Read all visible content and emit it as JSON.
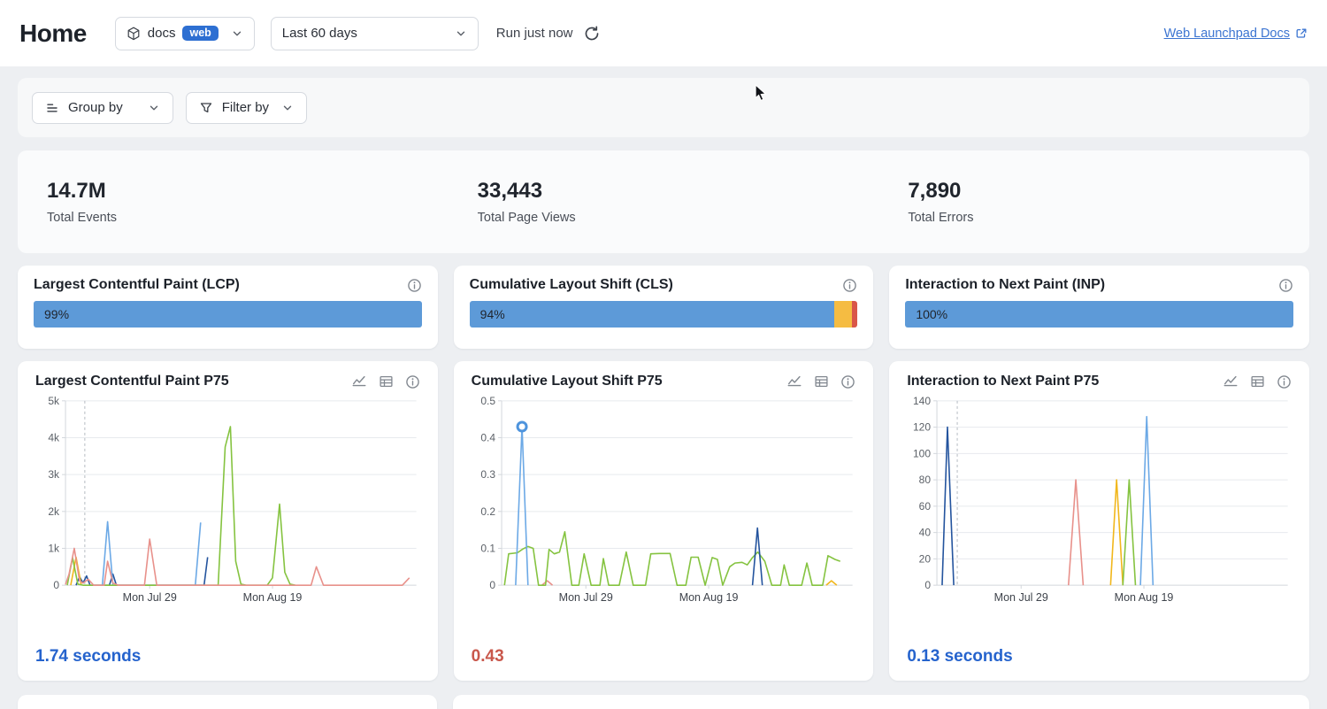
{
  "header": {
    "title": "Home",
    "project_selector": {
      "name": "docs",
      "badge": "web"
    },
    "date_range": "Last 60 days",
    "run_status": "Run just now",
    "docs_link": "Web Launchpad Docs"
  },
  "filters": {
    "group_by_label": "Group by",
    "filter_by_label": "Filter by"
  },
  "stats": [
    {
      "value": "14.7M",
      "label": "Total Events"
    },
    {
      "value": "33,443",
      "label": "Total Page Views"
    },
    {
      "value": "7,890",
      "label": "Total Errors"
    }
  ],
  "vitals": [
    {
      "title": "Largest Contentful Paint (LCP)",
      "score_label": "99%",
      "segments": [
        {
          "name": "good",
          "color": "#5d9ad8",
          "pct": 100
        }
      ]
    },
    {
      "title": "Cumulative Layout Shift (CLS)",
      "score_label": "94%",
      "segments": [
        {
          "name": "good",
          "color": "#5d9ad8",
          "pct": 94
        },
        {
          "name": "needs-improvement",
          "color": "#f5bc42",
          "pct": 4.6
        },
        {
          "name": "poor",
          "color": "#d95649",
          "pct": 1.4
        }
      ]
    },
    {
      "title": "Interaction to Next Paint (INP)",
      "score_label": "100%",
      "segments": [
        {
          "name": "good",
          "color": "#5d9ad8",
          "pct": 100
        }
      ]
    }
  ],
  "icons": {
    "project-icon": "cube",
    "chevron-down-icon": "v-chevron",
    "refresh-icon": "circular-arrow",
    "external-link-icon": "box-arrow",
    "group-by-icon": "stacked-lines",
    "filter-by-icon": "funnel",
    "line-chart-icon": "trend-polyline",
    "table-icon": "grid-table",
    "info-icon": "circled-i"
  },
  "colors": {
    "accent_blue": "#2d6fd2",
    "score_good": "#5d9ad8",
    "score_meh": "#f5bc42",
    "score_poor": "#d95649",
    "value_blue": "#2563cd",
    "value_red": "#c9584c"
  },
  "chart_data": [
    {
      "type": "line",
      "title": "Largest Contentful Paint P75",
      "value": "1.74 seconds",
      "value_color": "#2563cd",
      "ylim": [
        0,
        5000
      ],
      "yticks": [
        [
          0,
          "0"
        ],
        [
          1000,
          "1k"
        ],
        [
          2000,
          "2k"
        ],
        [
          3000,
          "3k"
        ],
        [
          4000,
          "4k"
        ],
        [
          5000,
          "5k"
        ]
      ],
      "xticks": [
        [
          24,
          "Mon Jul 29"
        ],
        [
          59,
          "Mon Aug 19"
        ]
      ],
      "markline_x": 5.5,
      "grid": true,
      "legend": "none",
      "series": [
        {
          "name": "navy",
          "color": "#24549e",
          "points": [
            [
              3,
              0
            ],
            [
              4,
              230
            ],
            [
              5,
              60
            ],
            [
              6,
              250
            ],
            [
              7,
              0
            ],
            [
              12.5,
              0
            ],
            [
              13.5,
              300
            ],
            [
              14.5,
              0
            ],
            [
              39.5,
              0
            ],
            [
              40.5,
              760
            ]
          ]
        },
        {
          "name": "orange",
          "color": "#f1b71c",
          "points": [
            [
              1.5,
              0
            ],
            [
              3,
              760
            ],
            [
              4.5,
              0
            ]
          ]
        },
        {
          "name": "lightblue",
          "color": "#6ca9e6",
          "points": [
            [
              10.5,
              0
            ],
            [
              12,
              1720
            ],
            [
              13.5,
              0
            ]
          ]
        },
        {
          "name": "lightblue-2",
          "color": "#6ca9e6",
          "points": [
            [
              37,
              0
            ],
            [
              38.5,
              1700
            ]
          ]
        },
        {
          "name": "green",
          "color": "#85c340",
          "points": [
            [
              0.5,
              0
            ],
            [
              2,
              750
            ],
            [
              3.5,
              30
            ],
            [
              5,
              0
            ],
            [
              43.5,
              0
            ],
            [
              45.5,
              3750
            ],
            [
              47,
              4300
            ],
            [
              48.5,
              650
            ],
            [
              50,
              30
            ],
            [
              51.5,
              0
            ],
            [
              57.5,
              0
            ],
            [
              59,
              200
            ],
            [
              61,
              2200
            ],
            [
              62.5,
              350
            ],
            [
              64,
              30
            ],
            [
              65.5,
              0
            ]
          ]
        },
        {
          "name": "salmon",
          "color": "#e8918b",
          "points": [
            [
              0,
              20
            ],
            [
              1,
              300
            ],
            [
              2.5,
              1000
            ],
            [
              4,
              120
            ],
            [
              5,
              60
            ],
            [
              6.5,
              160
            ],
            [
              8,
              0
            ],
            [
              11,
              0
            ],
            [
              12,
              650
            ],
            [
              13.5,
              60
            ],
            [
              15,
              0
            ],
            [
              22.5,
              0
            ],
            [
              24,
              1250
            ],
            [
              26,
              0
            ],
            [
              70,
              0
            ],
            [
              71.5,
              500
            ],
            [
              73.5,
              0
            ],
            [
              96,
              0
            ],
            [
              98,
              200
            ]
          ]
        }
      ]
    },
    {
      "type": "line",
      "title": "Cumulative Layout Shift P75",
      "value": "0.43",
      "value_color": "#c9584c",
      "ylim": [
        0,
        0.5
      ],
      "yticks": [
        [
          0,
          "0"
        ],
        [
          0.1,
          "0.1"
        ],
        [
          0.2,
          "0.2"
        ],
        [
          0.3,
          "0.3"
        ],
        [
          0.4,
          "0.4"
        ],
        [
          0.5,
          "0.5"
        ]
      ],
      "xticks": [
        [
          24,
          "Mon Jul 29"
        ],
        [
          59,
          "Mon Aug 19"
        ]
      ],
      "markline_x": null,
      "grid": true,
      "legend": "none",
      "marker": {
        "x": 5.8,
        "y": 0.43,
        "color": "#4e94dd"
      },
      "series": [
        {
          "name": "salmon",
          "color": "#e8918b",
          "points": [
            [
              11.5,
              0
            ],
            [
              13,
              0.012
            ],
            [
              14.5,
              0
            ]
          ]
        },
        {
          "name": "orange",
          "color": "#f1b71c",
          "points": [
            [
              92.5,
              0
            ],
            [
              94,
              0.012
            ],
            [
              95.5,
              0
            ]
          ]
        },
        {
          "name": "green",
          "color": "#85c340",
          "points": [
            [
              0.8,
              0
            ],
            [
              2,
              0.085
            ],
            [
              4.5,
              0.088
            ],
            [
              6,
              0.098
            ],
            [
              7.5,
              0.105
            ],
            [
              9,
              0.1
            ],
            [
              10.5,
              0
            ],
            [
              12.5,
              0
            ],
            [
              13.5,
              0.097
            ],
            [
              15,
              0.085
            ],
            [
              16.5,
              0.09
            ],
            [
              18,
              0.145
            ],
            [
              20,
              0
            ],
            [
              22,
              0
            ],
            [
              23.5,
              0.085
            ],
            [
              25.5,
              0
            ],
            [
              28,
              0
            ],
            [
              29,
              0.072
            ],
            [
              30.5,
              0
            ],
            [
              33.5,
              0
            ],
            [
              35.5,
              0.09
            ],
            [
              37.5,
              0
            ],
            [
              41,
              0
            ],
            [
              42.5,
              0.085
            ],
            [
              45,
              0.086
            ],
            [
              48,
              0.086
            ],
            [
              50,
              0
            ],
            [
              52.5,
              0
            ],
            [
              54,
              0.076
            ],
            [
              56,
              0.076
            ],
            [
              58,
              0
            ],
            [
              60,
              0.075
            ],
            [
              61.5,
              0.07
            ],
            [
              63,
              0
            ],
            [
              65,
              0.05
            ],
            [
              66.5,
              0.06
            ],
            [
              68.5,
              0.062
            ],
            [
              70,
              0.055
            ],
            [
              71.5,
              0.075
            ],
            [
              73,
              0.09
            ],
            [
              75,
              0.065
            ],
            [
              77,
              0
            ],
            [
              79.5,
              0
            ],
            [
              80.5,
              0.055
            ],
            [
              82,
              0
            ],
            [
              85.5,
              0
            ],
            [
              87,
              0.06
            ],
            [
              88.5,
              0
            ],
            [
              91.5,
              0
            ],
            [
              93,
              0.08
            ],
            [
              95,
              0.07
            ],
            [
              96.5,
              0.065
            ]
          ]
        },
        {
          "name": "navy",
          "color": "#24549e",
          "points": [
            [
              71.5,
              0
            ],
            [
              72.9,
              0.155
            ],
            [
              74.3,
              0
            ]
          ]
        },
        {
          "name": "lightblue",
          "color": "#6ca9e6",
          "points": [
            [
              4,
              0
            ],
            [
              5.8,
              0.43
            ],
            [
              7.5,
              0
            ]
          ]
        }
      ]
    },
    {
      "type": "line",
      "title": "Interaction to Next Paint P75",
      "value": "0.13 seconds",
      "value_color": "#2563cd",
      "ylim": [
        0,
        140
      ],
      "yticks": [
        [
          0,
          "0"
        ],
        [
          20,
          "20"
        ],
        [
          40,
          "40"
        ],
        [
          60,
          "60"
        ],
        [
          80,
          "80"
        ],
        [
          100,
          "100"
        ],
        [
          120,
          "120"
        ],
        [
          140,
          "140"
        ]
      ],
      "xticks": [
        [
          24,
          "Mon Jul 29"
        ],
        [
          59,
          "Mon Aug 19"
        ]
      ],
      "markline_x": 5.8,
      "grid": true,
      "legend": "none",
      "series": [
        {
          "name": "navy",
          "color": "#24549e",
          "points": [
            [
              1.5,
              0
            ],
            [
              3,
              120
            ],
            [
              4.8,
              0
            ]
          ]
        },
        {
          "name": "salmon",
          "color": "#e8918b",
          "points": [
            [
              37.5,
              0
            ],
            [
              39.6,
              80
            ],
            [
              41.7,
              0
            ]
          ]
        },
        {
          "name": "orange",
          "color": "#f1b71c",
          "points": [
            [
              49.5,
              0
            ],
            [
              51.2,
              80
            ],
            [
              53,
              0
            ]
          ]
        },
        {
          "name": "green",
          "color": "#85c340",
          "points": [
            [
              53,
              0
            ],
            [
              54.8,
              80
            ],
            [
              56.6,
              0
            ]
          ]
        },
        {
          "name": "lightblue",
          "color": "#6ca9e6",
          "points": [
            [
              58,
              0
            ],
            [
              59.8,
              128
            ],
            [
              61.6,
              0
            ]
          ]
        }
      ]
    }
  ]
}
